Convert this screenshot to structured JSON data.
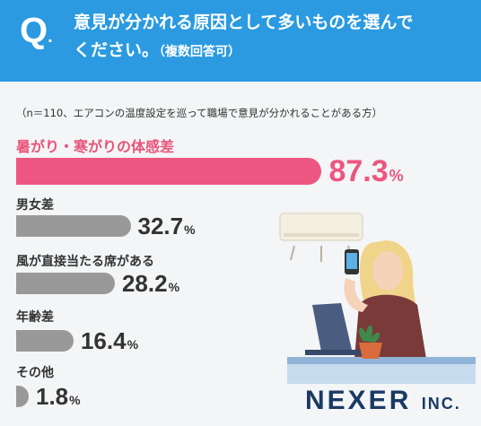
{
  "header": {
    "q": "Q",
    "q_dot": ".",
    "line1": "意見が分かれる原因として多いものを選んで",
    "line2": "ください。",
    "line2_sub": "（複数回答可）"
  },
  "note": "（n＝110、エアコンの温度設定を巡って職場で意見が分かれることがある方）",
  "chart_data": {
    "type": "bar",
    "orientation": "horizontal",
    "categories": [
      "暑がり・寒がりの体感差",
      "男女差",
      "風が直接当たる席がある",
      "年齢差",
      "その他"
    ],
    "values": [
      87.3,
      32.7,
      28.2,
      16.4,
      1.8
    ],
    "value_labels": [
      "87.3",
      "32.7",
      "28.2",
      "16.4",
      "1.8"
    ],
    "unit": "%",
    "colors": {
      "highlight": "#ec5680",
      "normal": "#999999"
    }
  },
  "logo": {
    "name": "NEXER",
    "suffix": "INC."
  }
}
